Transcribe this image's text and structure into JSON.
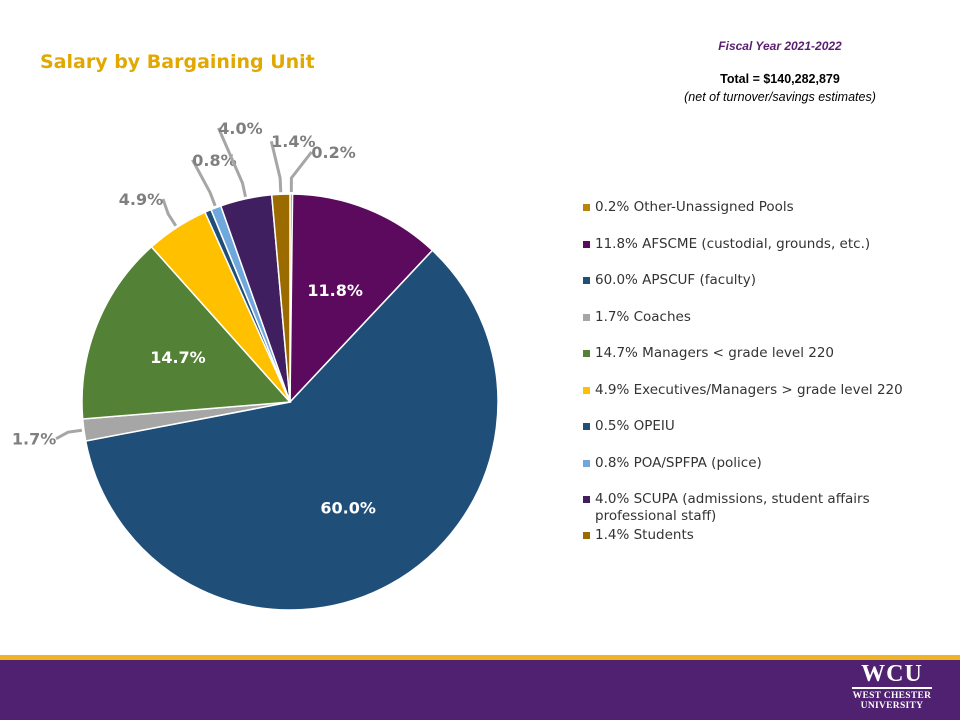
{
  "header": {
    "title": "Salary by Bargaining Unit",
    "fiscal_year": "Fiscal Year 2021-2022",
    "total": "Total = $140,282,879",
    "note": "(net of turnover/savings estimates)"
  },
  "colors": {
    "title": "#e0a800",
    "fiscal_year": "#5b1e6e",
    "footer": "#4f2170",
    "footer_accent": "#f0b323"
  },
  "chart_data": {
    "type": "pie",
    "start_angle_deg": 270,
    "direction": "clockwise",
    "slices": [
      {
        "name": "Other-Unassigned Pools",
        "value": 0.2,
        "label": "0.2%",
        "legend": "0.2% Other-Unassigned Pools",
        "color": "#b8860b",
        "label_pos": "outside",
        "label_color": "#7f7f7f"
      },
      {
        "name": "AFSCME (custodial, grounds, etc.)",
        "value": 11.8,
        "label": "11.8%",
        "legend": "11.8% AFSCME (custodial, grounds, etc.)",
        "color": "#5c0a5e",
        "label_pos": "inside",
        "label_color": "#ffffff"
      },
      {
        "name": "APSCUF (faculty)",
        "value": 60.0,
        "label": "60.0%",
        "legend": "60.0% APSCUF (faculty)",
        "color": "#1f4e79",
        "label_pos": "inside",
        "label_color": "#ffffff"
      },
      {
        "name": "Coaches",
        "value": 1.7,
        "label": "1.7%",
        "legend": "1.7% Coaches",
        "color": "#a6a6a6",
        "label_pos": "outside",
        "label_color": "#7f7f7f"
      },
      {
        "name": "Managers < grade level 220",
        "value": 14.7,
        "label": "14.7%",
        "legend": "14.7% Managers < grade level 220",
        "color": "#538135",
        "label_pos": "inside",
        "label_color": "#ffffff"
      },
      {
        "name": "Executives/Managers > grade level 220",
        "value": 4.9,
        "label": "4.9%",
        "legend": "4.9% Executives/Managers > grade level 220",
        "color": "#ffc000",
        "label_pos": "outside",
        "label_color": "#7f7f7f"
      },
      {
        "name": "OPEIU",
        "value": 0.5,
        "label": "",
        "legend": "0.5% OPEIU",
        "color": "#1f4e79",
        "label_pos": "none",
        "label_color": "#7f7f7f"
      },
      {
        "name": "POA/SPFPA (police)",
        "value": 0.8,
        "label": "0.8%",
        "legend": "0.8% POA/SPFPA (police)",
        "color": "#6fa8dc",
        "label_pos": "outside",
        "label_color": "#7f7f7f"
      },
      {
        "name": "SCUPA (admissions, student affairs professional staff)",
        "value": 4.0,
        "label": "4.0%",
        "legend": "4.0% SCUPA (admissions, student affairs professional staff)",
        "color": "#3f1f5f",
        "label_pos": "outside",
        "label_color": "#7f7f7f"
      },
      {
        "name": "Students",
        "value": 1.4,
        "label": "1.4%",
        "legend": "1.4% Students",
        "color": "#9c6b00",
        "label_pos": "outside",
        "label_color": "#7f7f7f"
      }
    ]
  },
  "logo": {
    "mark": "WCU",
    "line1": "WEST CHESTER",
    "line2": "UNIVERSITY"
  }
}
